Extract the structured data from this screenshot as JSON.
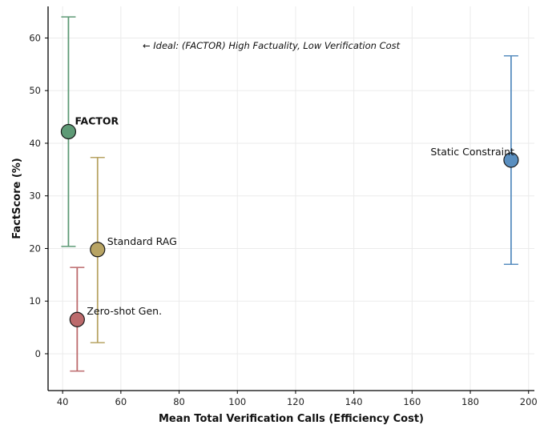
{
  "chart_data": {
    "type": "scatter",
    "title": "",
    "xlabel": "Mean Total Verification Calls (Efficiency Cost)",
    "ylabel": "FactScore (%)",
    "xlim": [
      35,
      202
    ],
    "ylim": [
      -7,
      66
    ],
    "xticks": [
      40,
      60,
      80,
      100,
      120,
      140,
      160,
      180,
      200
    ],
    "yticks": [
      0,
      10,
      20,
      30,
      40,
      50,
      60
    ],
    "grid": true,
    "legend": "none",
    "annotation": "← Ideal: (FACTOR) High Factuality, Low Verification Cost",
    "points": [
      {
        "label": "FACTOR",
        "x": 42,
        "y": 42.2,
        "err_low": 20.4,
        "err_high": 64.0,
        "color": "#5e9a76",
        "bold": true
      },
      {
        "label": "Standard RAG",
        "x": 52,
        "y": 19.8,
        "err_low": 2.1,
        "err_high": 37.3,
        "color": "#b8a464",
        "bold": false
      },
      {
        "label": "Zero-shot Gen.",
        "x": 45,
        "y": 6.5,
        "err_low": -3.3,
        "err_high": 16.4,
        "color": "#bc6a6c",
        "bold": false
      },
      {
        "label": "Static Constraint",
        "x": 194,
        "y": 36.8,
        "err_low": 17.0,
        "err_high": 56.6,
        "color": "#5a8fc0",
        "bold": false
      }
    ]
  }
}
